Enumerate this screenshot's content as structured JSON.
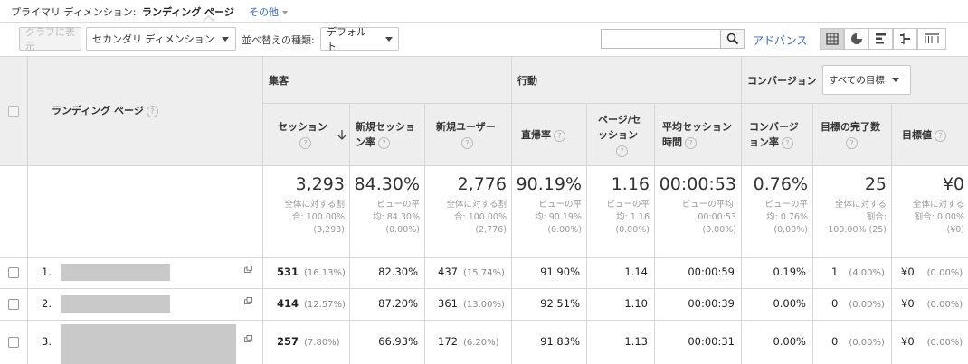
{
  "topbar": {
    "primary_dimension_label": "プライマリ ディメンション:",
    "primary_dimension_value": "ランディング ページ",
    "other_link": "その他"
  },
  "toolbar": {
    "plot_rows_button": "グラフに表示",
    "secondary_dimension": "セカンダリ ディメンション",
    "sort_type_label": "並べ替えの種類:",
    "sort_type_value": "デフォルト",
    "search_placeholder": "",
    "advanced_link": "アドバンス",
    "view_icons": [
      "grid-icon",
      "pie-icon",
      "bar-icon",
      "compare-icon",
      "pivot-icon"
    ]
  },
  "table": {
    "dimension_header": "ランディング ページ",
    "groups": {
      "acquisition": "集客",
      "behavior": "行動",
      "conversion": "コンバージョン",
      "goal_select": "すべての目標"
    },
    "columns": [
      {
        "l1": "セッション",
        "l2": ""
      },
      {
        "l1": "新規セッショ",
        "l2": "ン率"
      },
      {
        "l1": "新規ユーザー",
        "l2": ""
      },
      {
        "l1": "直帰率",
        "l2": ""
      },
      {
        "l1": "ページ/セ",
        "l2": "ッション"
      },
      {
        "l1": "平均セッション",
        "l2": "時間"
      },
      {
        "l1": "コンバージ",
        "l2": "ョン率"
      },
      {
        "l1": "目標の完了数",
        "l2": ""
      },
      {
        "l1": "目標値",
        "l2": ""
      }
    ],
    "totals": [
      {
        "big": "3,293",
        "sub": [
          "全体に対する割",
          "合: 100.00%",
          "(3,293)"
        ]
      },
      {
        "big": "84.30%",
        "sub": [
          "ビューの平",
          "均: 84.30%",
          "(0.00%)"
        ]
      },
      {
        "big": "2,776",
        "sub": [
          "全体に対する割",
          "合: 100.00%",
          "(2,776)"
        ]
      },
      {
        "big": "90.19%",
        "sub": [
          "ビューの平",
          "均: 90.19%",
          "(0.00%)"
        ]
      },
      {
        "big": "1.16",
        "sub": [
          "ビューの平",
          "均: 1.16",
          "(0.00%)"
        ]
      },
      {
        "big": "00:00:53",
        "sub": [
          "ビューの平均:",
          "00:00:53",
          "(0.00%)"
        ]
      },
      {
        "big": "0.76%",
        "sub": [
          "ビューの平",
          "均: 0.76%",
          "(0.00%)"
        ]
      },
      {
        "big": "25",
        "sub": [
          "全体に対する",
          "割合:",
          "100.00% (25)"
        ]
      },
      {
        "big": "¥0",
        "sub": [
          "全体に対する",
          "割合: 0.00%",
          "(¥0)"
        ]
      }
    ],
    "rows": [
      {
        "num": "1.",
        "sessions": "531",
        "sessions_pct": "(16.13%)",
        "new_rate": "82.30%",
        "new_users": "437",
        "new_users_pct": "(15.74%)",
        "bounce": "91.90%",
        "pps": "1.14",
        "duration": "00:00:59",
        "conv": "0.19%",
        "goals": "1",
        "goals_pct": "(4.00%)",
        "value": "¥0",
        "value_pct": "(0.00%)"
      },
      {
        "num": "2.",
        "sessions": "414",
        "sessions_pct": "(12.57%)",
        "new_rate": "87.20%",
        "new_users": "361",
        "new_users_pct": "(13.00%)",
        "bounce": "92.51%",
        "pps": "1.10",
        "duration": "00:00:39",
        "conv": "0.00%",
        "goals": "0",
        "goals_pct": "(0.00%)",
        "value": "¥0",
        "value_pct": "(0.00%)"
      },
      {
        "num": "3.",
        "sessions": "257",
        "sessions_pct": "(7.80%)",
        "new_rate": "66.93%",
        "new_users": "172",
        "new_users_pct": "(6.20%)",
        "bounce": "91.83%",
        "pps": "1.13",
        "duration": "00:00:31",
        "conv": "0.00%",
        "goals": "0",
        "goals_pct": "(0.00%)",
        "value": "¥0",
        "value_pct": "(0.00%)"
      }
    ]
  }
}
